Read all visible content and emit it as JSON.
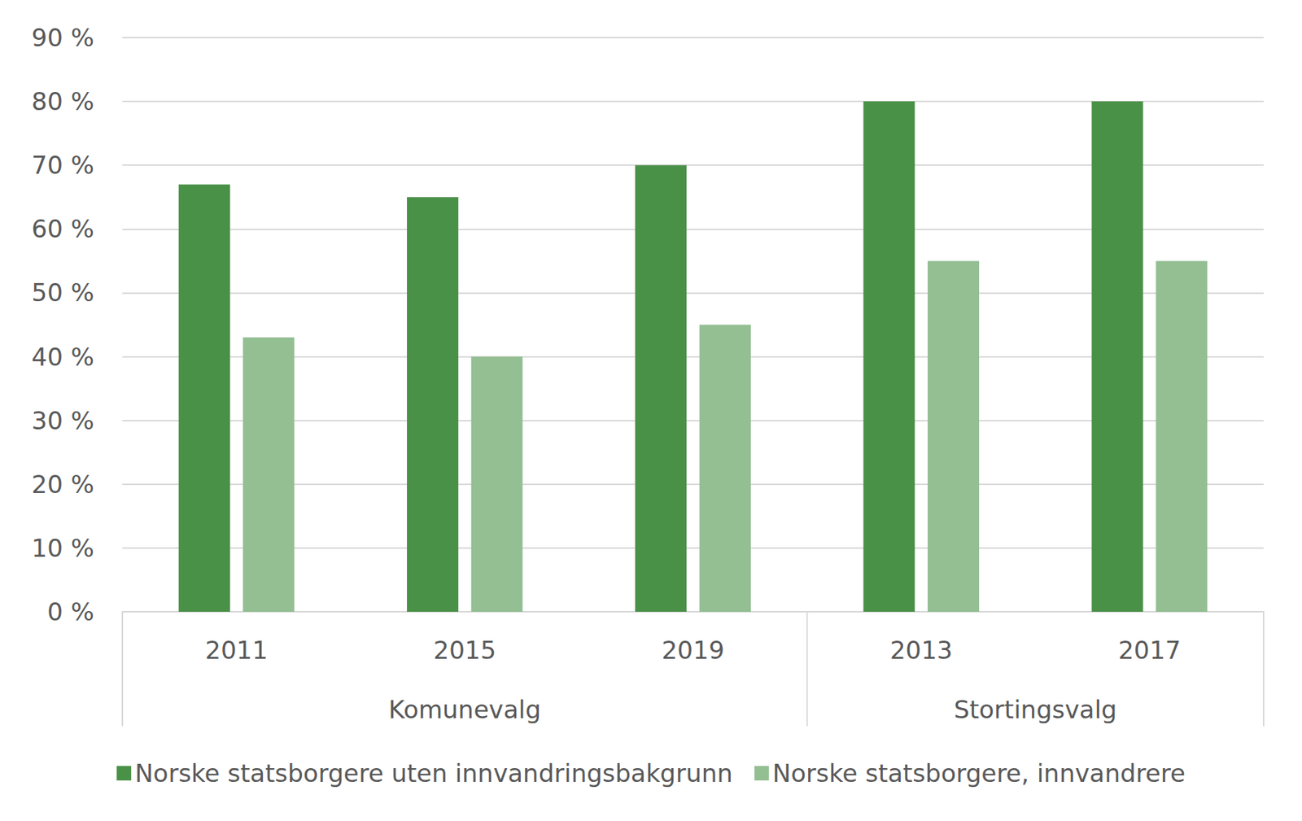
{
  "chart_data": {
    "type": "bar",
    "categories": [
      "2011",
      "2015",
      "2019",
      "2013",
      "2017"
    ],
    "category_groups": [
      {
        "label": "Komunevalg",
        "members": [
          "2011",
          "2015",
          "2019"
        ]
      },
      {
        "label": "Stortingsvalg",
        "members": [
          "2013",
          "2017"
        ]
      }
    ],
    "series": [
      {
        "name": "Norske statsborgere uten innvandringsbakgrunn",
        "color": "#4a9148",
        "values": [
          67,
          65,
          70,
          80,
          80
        ]
      },
      {
        "name": "Norske statsborgere, innvandrere",
        "color": "#93bf93",
        "values": [
          43,
          40,
          45,
          55,
          55
        ]
      }
    ],
    "ylim": [
      0,
      90
    ],
    "yticks": [
      {
        "value": 0,
        "label": "0 %"
      },
      {
        "value": 10,
        "label": "10 %"
      },
      {
        "value": 20,
        "label": "20 %"
      },
      {
        "value": 30,
        "label": "30 %"
      },
      {
        "value": 40,
        "label": "40 %"
      },
      {
        "value": 50,
        "label": "50 %"
      },
      {
        "value": 60,
        "label": "60 %"
      },
      {
        "value": 70,
        "label": "70 %"
      },
      {
        "value": 80,
        "label": "80 %"
      },
      {
        "value": 90,
        "label": "90 %"
      }
    ],
    "grid": true,
    "legend": "bottom"
  }
}
